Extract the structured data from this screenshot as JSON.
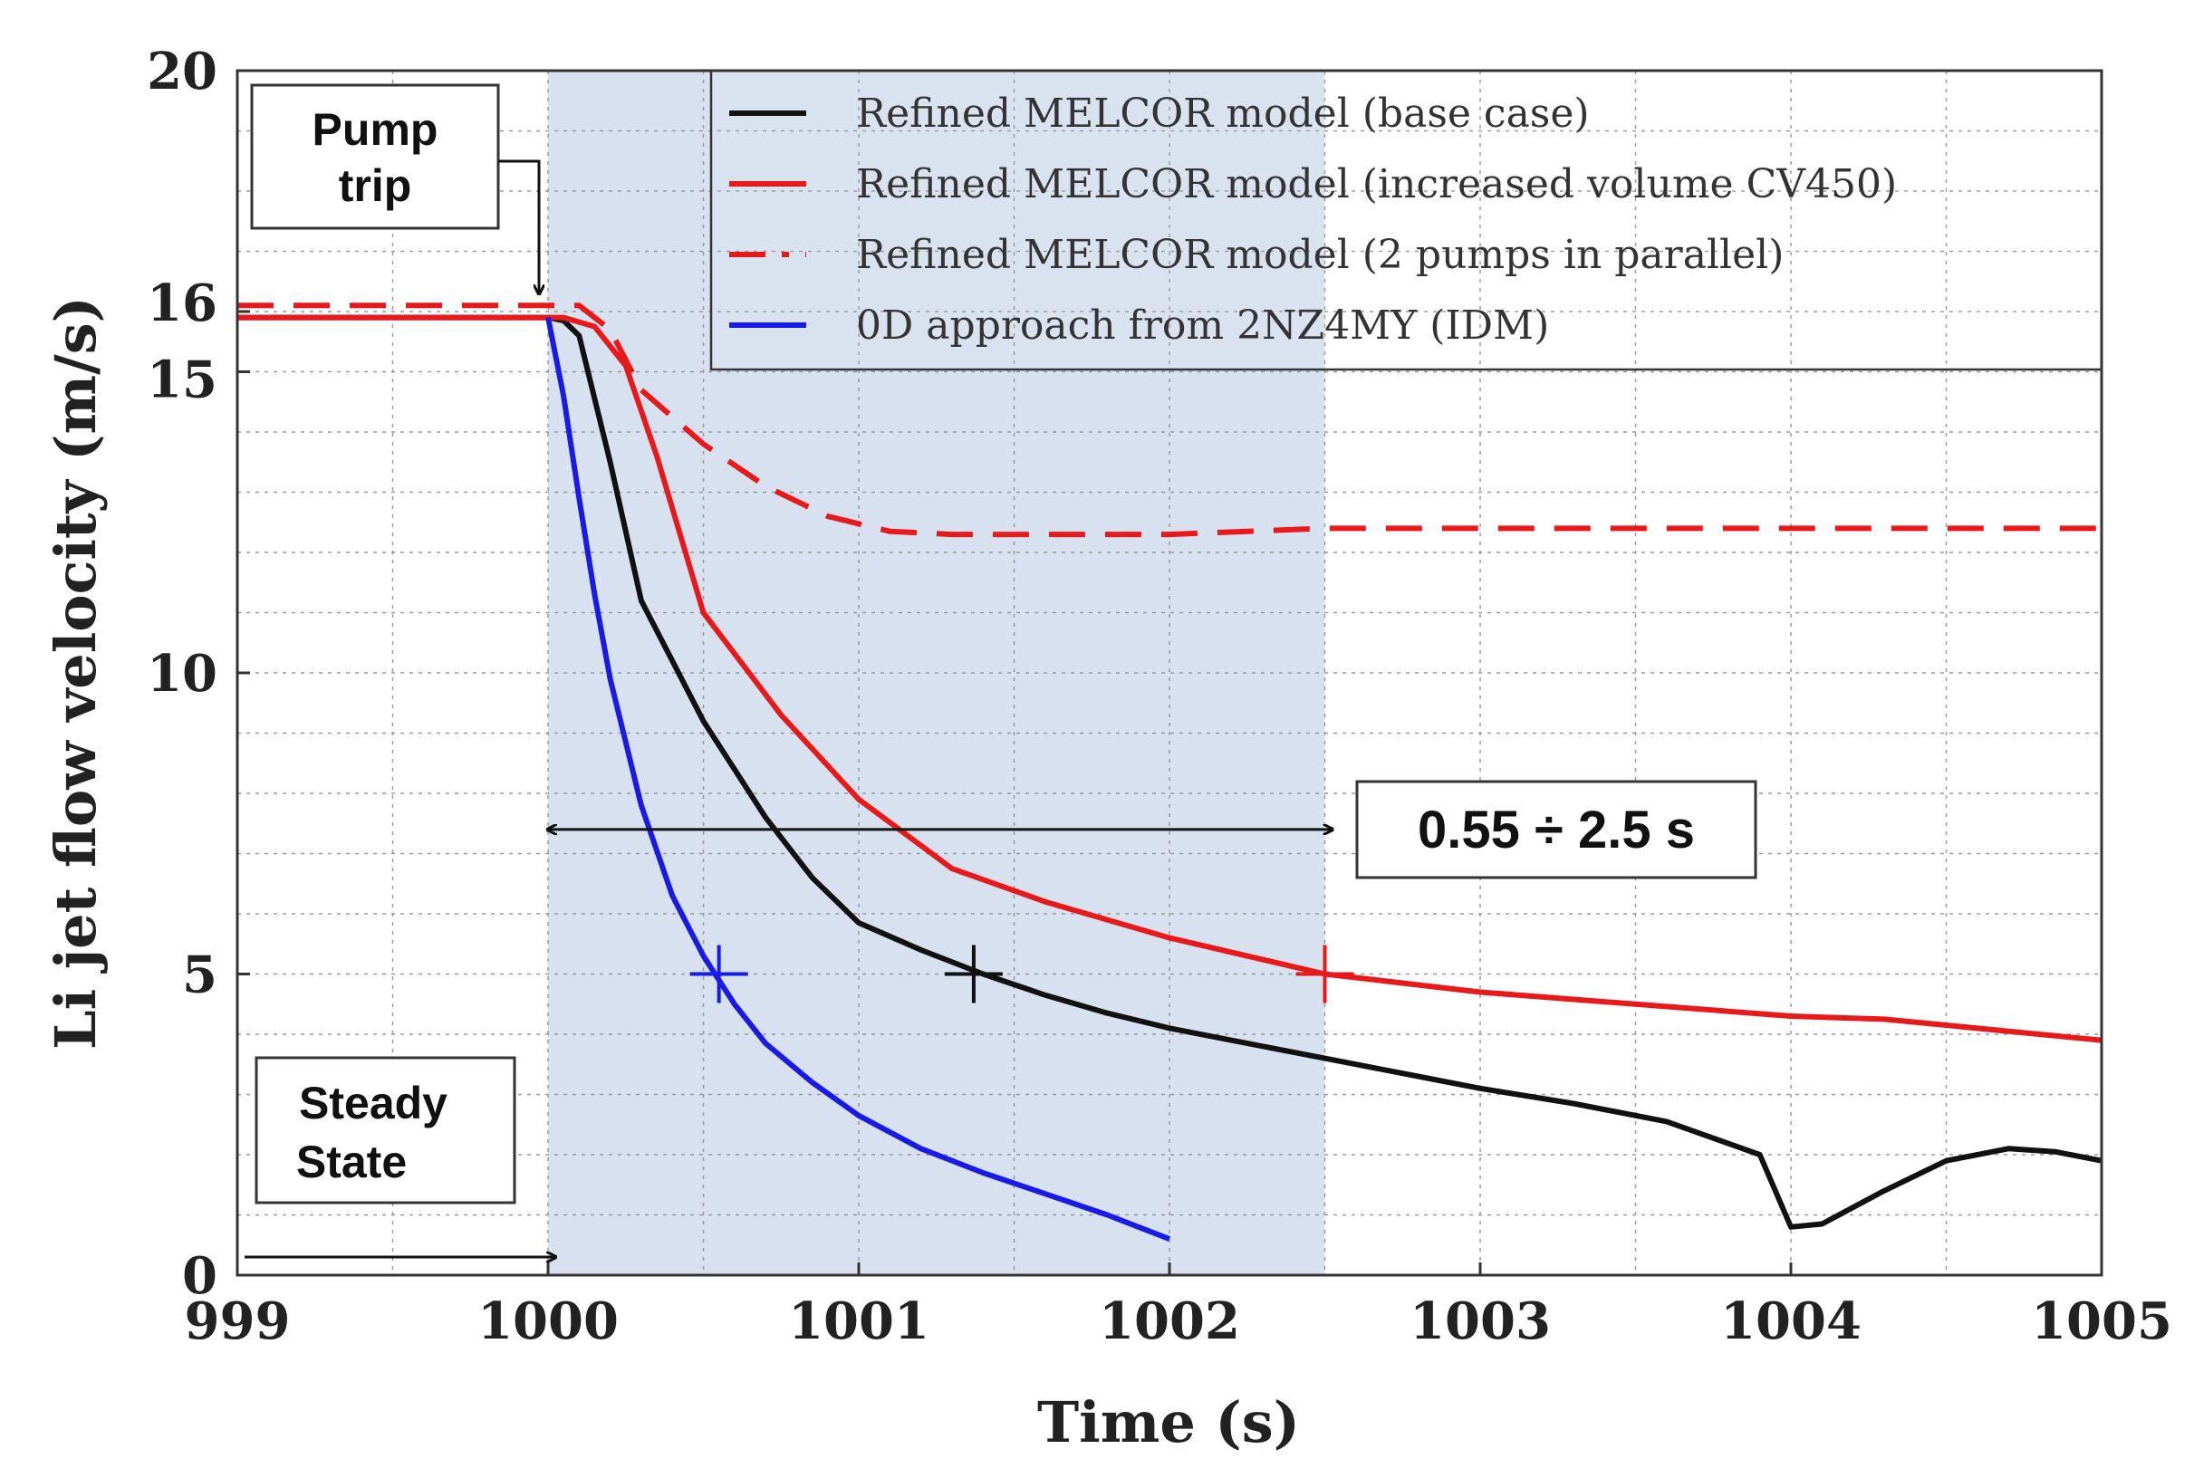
{
  "chart_data": {
    "type": "line",
    "xlabel": "Time (s)",
    "ylabel": "Li jet flow velocity (m/s)",
    "xlim": [
      999,
      1005
    ],
    "ylim": [
      0,
      20
    ],
    "x_ticks": [
      999,
      1000,
      1001,
      1002,
      1003,
      1004,
      1005
    ],
    "y_ticks": [
      0,
      5,
      10,
      15,
      16,
      20
    ],
    "grid": true,
    "shaded_region": [
      1000,
      1002.5
    ],
    "series": [
      {
        "name": "Refined MELCOR model (base case)",
        "color": "#111111",
        "style": "solid",
        "x": [
          999,
          1000,
          1000.05,
          1000.1,
          1000.2,
          1000.3,
          1000.5,
          1000.7,
          1000.85,
          1001,
          1001.2,
          1001.4,
          1001.6,
          1001.8,
          1002,
          1002.2,
          1002.5,
          1002.8,
          1003,
          1003.3,
          1003.6,
          1003.9,
          1004,
          1004.1,
          1004.3,
          1004.5,
          1004.7,
          1004.85,
          1005
        ],
        "y": [
          15.9,
          15.9,
          15.85,
          15.6,
          13.5,
          11.2,
          9.2,
          7.6,
          6.6,
          5.85,
          5.4,
          5.0,
          4.65,
          4.35,
          4.1,
          3.9,
          3.6,
          3.3,
          3.1,
          2.85,
          2.55,
          2.0,
          0.8,
          0.85,
          1.4,
          1.9,
          2.1,
          2.05,
          1.9
        ]
      },
      {
        "name": "Refined MELCOR model (increased volume CV450)",
        "color": "#e8191b",
        "style": "solid",
        "x": [
          999,
          1000,
          1000.05,
          1000.15,
          1000.25,
          1000.35,
          1000.5,
          1000.75,
          1001,
          1001.3,
          1001.6,
          1002,
          1002.5,
          1003,
          1003.5,
          1004,
          1004.3,
          1005
        ],
        "y": [
          15.9,
          15.9,
          15.9,
          15.75,
          15.1,
          13.6,
          11.0,
          9.3,
          7.9,
          6.75,
          6.2,
          5.6,
          5.0,
          4.7,
          4.5,
          4.3,
          4.25,
          3.9
        ]
      },
      {
        "name": "Refined MELCOR model (2 pumps in parallel)",
        "color": "#e8191b",
        "style": "dashed",
        "x": [
          999,
          1000,
          1000.1,
          1000.2,
          1000.3,
          1000.5,
          1000.7,
          1000.9,
          1001.1,
          1001.3,
          1001.6,
          1002,
          1002.5,
          1003,
          1004,
          1005
        ],
        "y": [
          16.1,
          16.1,
          16.1,
          15.7,
          14.7,
          13.8,
          13.1,
          12.6,
          12.35,
          12.3,
          12.3,
          12.3,
          12.4,
          12.4,
          12.4,
          12.4
        ]
      },
      {
        "name": "0D approach from 2NZ4MY (IDM)",
        "color": "#1a1ae6",
        "style": "solid",
        "x": [
          1000,
          1000.05,
          1000.1,
          1000.15,
          1000.2,
          1000.3,
          1000.4,
          1000.5,
          1000.6,
          1000.7,
          1000.85,
          1001,
          1001.2,
          1001.4,
          1001.6,
          1001.8,
          1002
        ],
        "y": [
          15.9,
          14.6,
          12.9,
          11.3,
          9.9,
          7.8,
          6.3,
          5.3,
          4.5,
          3.85,
          3.2,
          2.65,
          2.1,
          1.7,
          1.35,
          1.0,
          0.6
        ]
      }
    ],
    "markers": [
      {
        "series": "0D approach from 2NZ4MY (IDM)",
        "x": 1000.55,
        "y": 5,
        "color": "#1a1ae6"
      },
      {
        "series": "Refined MELCOR model (base case)",
        "x": 1001.37,
        "y": 5,
        "color": "#111111"
      },
      {
        "series": "Refined MELCOR model (increased volume CV450)",
        "x": 1002.5,
        "y": 5,
        "color": "#e8191b"
      }
    ],
    "annotations": {
      "pump_trip": {
        "line1": "Pump",
        "line2": "trip",
        "arrow_x": 1000,
        "arrow_y": 16
      },
      "steady_state": {
        "line1": "Steady",
        "line2": "State",
        "arrow_from_x": 999,
        "arrow_to_x": 1000,
        "arrow_y": 0.3
      },
      "range": {
        "label": "0.55 ÷ 2.5 s",
        "from_x": 1000,
        "to_x": 1002.5,
        "y": 7.4
      }
    }
  }
}
